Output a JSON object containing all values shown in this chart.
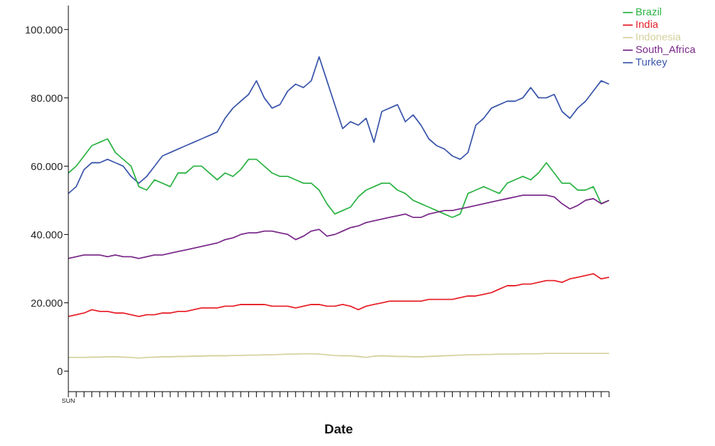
{
  "chart_data": {
    "type": "line",
    "xlabel": "Date",
    "categories": [
      "SUN",
      null,
      null,
      null,
      null,
      null,
      null,
      null,
      null,
      null,
      null,
      null,
      null,
      null,
      null,
      null,
      null,
      null,
      null,
      null,
      null,
      null,
      null,
      null,
      null,
      null,
      null,
      null,
      null,
      null,
      null,
      null,
      null,
      null,
      null,
      null,
      null,
      null,
      null,
      null,
      null,
      null,
      null,
      null,
      null,
      null,
      null,
      null,
      null,
      null,
      null,
      null,
      null,
      null,
      null,
      null,
      null,
      null,
      null,
      null,
      null,
      null,
      null,
      null,
      null,
      null,
      null,
      null,
      null,
      null
    ],
    "ylim": [
      -6000,
      107000
    ],
    "yticks": [
      0,
      {
        "value": 20000,
        "label": "20.000"
      },
      {
        "value": 40000,
        "label": "40.000"
      },
      {
        "value": 60000,
        "label": "60.000"
      },
      {
        "value": 80000,
        "label": "80.000"
      },
      {
        "value": 100000,
        "label": "100.000"
      }
    ],
    "grid": false,
    "legend": "top right",
    "marker": "none",
    "line_style": "solid",
    "series": [
      {
        "name": "Turkey",
        "color": "#3e58ac",
        "values": [
          52000,
          54000,
          59000,
          61000,
          61000,
          62000,
          61000,
          60000,
          57000,
          55000,
          57000,
          60000,
          63000,
          64000,
          65000,
          66000,
          67000,
          68000,
          69000,
          70000,
          74000,
          77000,
          79000,
          81000,
          85000,
          80000,
          77000,
          78000,
          82000,
          84000,
          83000,
          85000,
          92000,
          85000,
          78000,
          71000,
          73000,
          72000,
          74000,
          67000,
          76000,
          77000,
          78000,
          73000,
          75000,
          72000,
          68000,
          66000,
          65000,
          63000,
          62000,
          64000,
          72000,
          74000,
          77000,
          78000,
          79000,
          79000,
          80000,
          83000,
          80000,
          80000,
          81000,
          76000,
          74000,
          77000,
          79000,
          82000,
          85000,
          84000
        ]
      },
      {
        "name": "Brazil",
        "color": "#2eb446",
        "values": [
          58000,
          60000,
          63000,
          66000,
          67000,
          68000,
          64000,
          62000,
          60000,
          54000,
          53000,
          56000,
          55000,
          54000,
          58000,
          58000,
          60000,
          60000,
          58000,
          56000,
          58000,
          57000,
          59000,
          62000,
          62000,
          60000,
          58000,
          57000,
          57000,
          56000,
          55000,
          55000,
          53000,
          49000,
          46000,
          47000,
          48000,
          51000,
          53000,
          54000,
          55000,
          55000,
          53000,
          52000,
          50000,
          49000,
          48000,
          47000,
          46000,
          45000,
          46000,
          52000,
          53000,
          54000,
          53000,
          52000,
          55000,
          56000,
          57000,
          56000,
          58000,
          61000,
          58000,
          55000,
          55000,
          53000,
          53000,
          54000,
          49000,
          50000
        ]
      },
      {
        "name": "Indonesia",
        "color": "#d6d2a0",
        "values": [
          4000,
          4000,
          4000,
          4100,
          4100,
          4200,
          4200,
          4100,
          4000,
          3800,
          4000,
          4100,
          4200,
          4200,
          4300,
          4300,
          4400,
          4400,
          4500,
          4500,
          4500,
          4600,
          4600,
          4700,
          4700,
          4800,
          4800,
          4900,
          5000,
          5000,
          5100,
          5100,
          5000,
          4800,
          4600,
          4500,
          4500,
          4300,
          4000,
          4400,
          4500,
          4400,
          4300,
          4300,
          4200,
          4200,
          4300,
          4400,
          4500,
          4600,
          4700,
          4800,
          4800,
          4900,
          4900,
          5000,
          5000,
          5000,
          5100,
          5100,
          5100,
          5200,
          5200,
          5200,
          5200,
          5200,
          5200,
          5200,
          5200,
          5200
        ]
      },
      {
        "name": "South_Africa",
        "color": "#7b2a8a",
        "values": [
          33000,
          33500,
          34000,
          34000,
          34000,
          33500,
          34000,
          33500,
          33500,
          33000,
          33500,
          34000,
          34000,
          34500,
          35000,
          35500,
          36000,
          36500,
          37000,
          37500,
          38500,
          39000,
          40000,
          40500,
          40500,
          41000,
          41000,
          40500,
          40000,
          38500,
          39500,
          41000,
          41500,
          39500,
          40000,
          41000,
          42000,
          42500,
          43500,
          44000,
          44500,
          45000,
          45500,
          46000,
          45000,
          45000,
          46000,
          46500,
          47000,
          47000,
          47500,
          48000,
          48500,
          49000,
          49500,
          50000,
          50500,
          51000,
          51500,
          51500,
          51500,
          51500,
          51000,
          49000,
          47500,
          48500,
          50000,
          50500,
          49000,
          50000
        ]
      },
      {
        "name": "India",
        "color": "#e8222b",
        "values": [
          16000,
          16500,
          17000,
          18000,
          17500,
          17500,
          17000,
          17000,
          16500,
          16000,
          16500,
          16500,
          17000,
          17000,
          17500,
          17500,
          18000,
          18500,
          18500,
          18500,
          19000,
          19000,
          19500,
          19500,
          19500,
          19500,
          19000,
          19000,
          19000,
          18500,
          19000,
          19500,
          19500,
          19000,
          19000,
          19500,
          19000,
          18000,
          19000,
          19500,
          20000,
          20500,
          20500,
          20500,
          20500,
          20500,
          21000,
          21000,
          21000,
          21000,
          21500,
          22000,
          22000,
          22500,
          23000,
          24000,
          25000,
          25000,
          25500,
          25500,
          26000,
          26500,
          26500,
          26000,
          27000,
          27500,
          28000,
          28500,
          27000,
          27500
        ]
      }
    ]
  }
}
